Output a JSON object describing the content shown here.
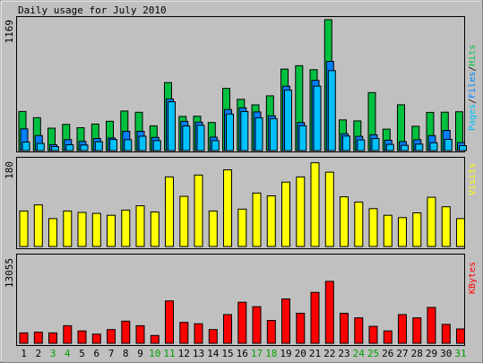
{
  "title": "Daily usage for July 2010",
  "colors": {
    "background": "#c0c0c0",
    "hits": "#00c040",
    "files": "#0080ff",
    "pages": "#00c0ff",
    "visits": "#ffff00",
    "kbytes": "#ff0000",
    "weekend_label": "#00a000",
    "weekday_label": "#000000"
  },
  "chart_data": [
    {
      "type": "bar",
      "panel": "hits-files-pages",
      "ymax_label": "1169",
      "ylim": [
        0,
        1169
      ],
      "legend": [
        "Pages",
        "/",
        "Files",
        "/",
        "Hits"
      ],
      "categories": [
        "1",
        "2",
        "3",
        "4",
        "5",
        "6",
        "7",
        "8",
        "9",
        "10",
        "11",
        "12",
        "13",
        "14",
        "15",
        "16",
        "17",
        "18",
        "19",
        "20",
        "21",
        "22",
        "23",
        "24",
        "25",
        "26",
        "27",
        "28",
        "29",
        "30",
        "31"
      ],
      "weekend_days": [
        "3",
        "4",
        "10",
        "11",
        "17",
        "18",
        "24",
        "25",
        "31"
      ],
      "series": [
        {
          "name": "Hits",
          "values": [
            349,
            294,
            200,
            234,
            204,
            237,
            262,
            353,
            342,
            221,
            607,
            305,
            307,
            251,
            556,
            458,
            408,
            489,
            728,
            758,
            722,
            1169,
            274,
            265,
            518,
            191,
            409,
            217,
            341,
            343,
            347
          ]
        },
        {
          "name": "Files",
          "values": [
            194,
            134,
            52,
            98,
            82,
            108,
            113,
            172,
            172,
            118,
            461,
            261,
            254,
            120,
            367,
            382,
            345,
            311,
            575,
            250,
            627,
            797,
            150,
            127,
            141,
            93,
            80,
            97,
            134,
            180,
            71
          ]
        },
        {
          "name": "Pages",
          "values": [
            76,
            64,
            35,
            52,
            50,
            79,
            99,
            98,
            128,
            89,
            436,
            219,
            226,
            89,
            327,
            348,
            293,
            285,
            540,
            222,
            576,
            714,
            130,
            95,
            107,
            55,
            47,
            58,
            70,
            100,
            44
          ]
        }
      ]
    },
    {
      "type": "bar",
      "panel": "visits",
      "ymax_label": "180",
      "ylim": [
        0,
        180
      ],
      "legend": [
        "Visits"
      ],
      "categories": [
        "1",
        "2",
        "3",
        "4",
        "5",
        "6",
        "7",
        "8",
        "9",
        "10",
        "11",
        "12",
        "13",
        "14",
        "15",
        "16",
        "17",
        "18",
        "19",
        "20",
        "21",
        "22",
        "23",
        "24",
        "25",
        "26",
        "27",
        "28",
        "29",
        "30",
        "31"
      ],
      "series": [
        {
          "name": "Visits",
          "values": [
            75,
            88,
            59,
            75,
            72,
            70,
            66,
            77,
            86,
            73,
            147,
            106,
            151,
            75,
            162,
            79,
            113,
            107,
            136,
            147,
            177,
            157,
            105,
            94,
            80,
            66,
            61,
            71,
            104,
            84,
            59
          ]
        }
      ]
    },
    {
      "type": "bar",
      "panel": "kbytes",
      "ymax_label": "13055",
      "ylim": [
        0,
        13055
      ],
      "legend": [
        "KBytes"
      ],
      "categories": [
        "1",
        "2",
        "3",
        "4",
        "5",
        "6",
        "7",
        "8",
        "9",
        "10",
        "11",
        "12",
        "13",
        "14",
        "15",
        "16",
        "17",
        "18",
        "19",
        "20",
        "21",
        "22",
        "23",
        "24",
        "25",
        "26",
        "27",
        "28",
        "29",
        "30",
        "31"
      ],
      "series": [
        {
          "name": "KBytes",
          "values": [
            1600,
            1700,
            1600,
            2700,
            1900,
            1400,
            2100,
            3400,
            2700,
            1200,
            6500,
            3200,
            3000,
            2100,
            4400,
            6300,
            5600,
            3500,
            6800,
            4600,
            7800,
            9500,
            4600,
            3900,
            2600,
            1900,
            4400,
            3900,
            5500,
            2900,
            2200
          ]
        }
      ]
    }
  ]
}
